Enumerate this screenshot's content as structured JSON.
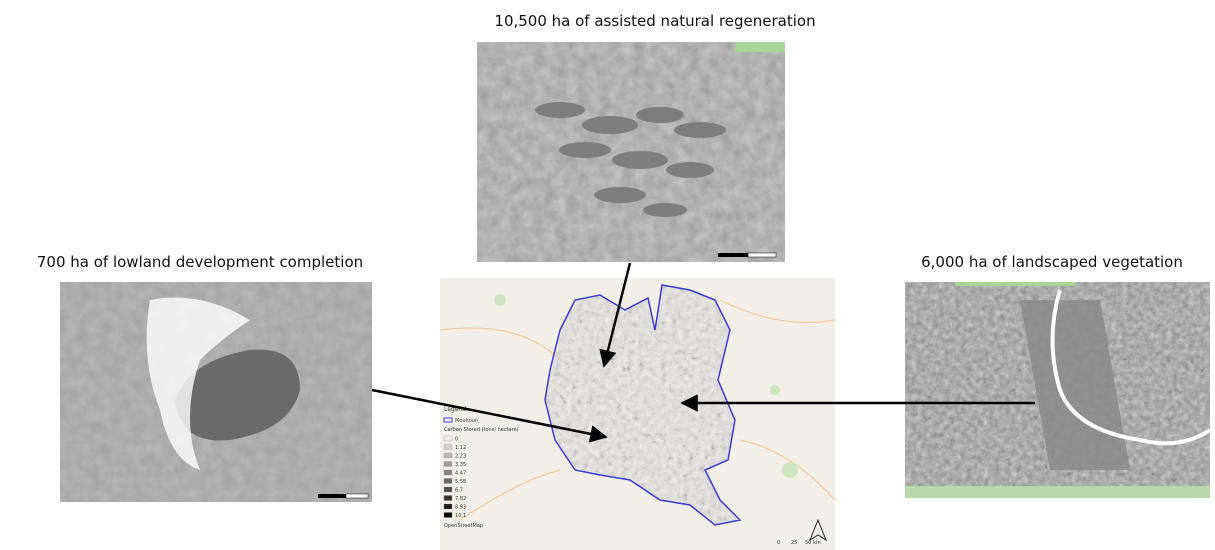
{
  "labels": {
    "top": "10,500 ha of assisted natural regeneration",
    "left": "700 ha of lowland development completion",
    "right": "6,000 ha of landscaped vegetation"
  },
  "legend": {
    "title": "Legend",
    "boundary": "Mouhoun",
    "heading": "Carbon Stored (tons/ hectare)",
    "classes": [
      "0",
      "1.12",
      "2.23",
      "3.35",
      "4.47",
      "5.58",
      "6.7",
      "7.82",
      "8.93",
      "10.1"
    ],
    "source": "OpenStreetMap"
  },
  "scale": [
    "0",
    "25",
    "50 km"
  ]
}
